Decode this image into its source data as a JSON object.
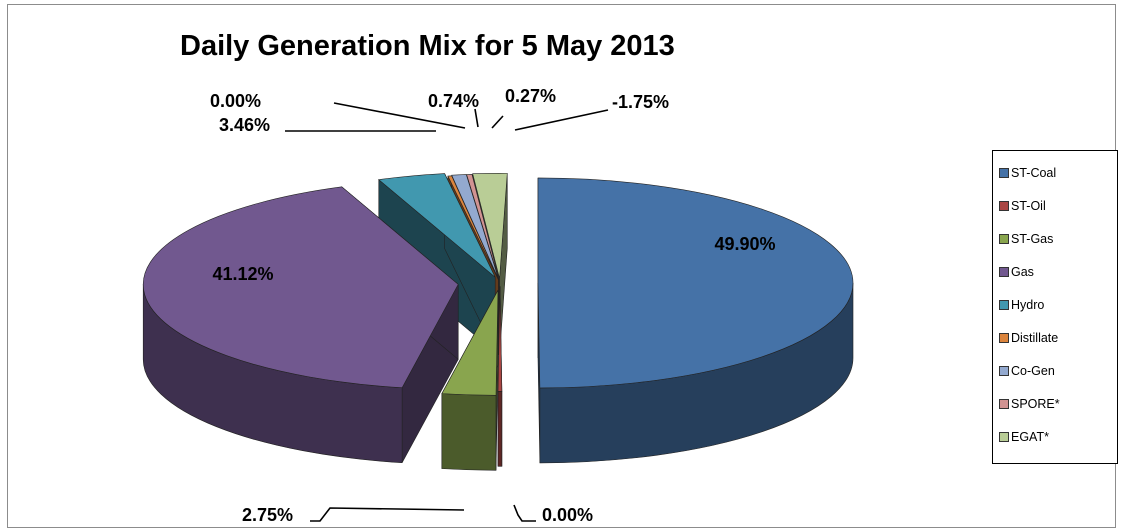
{
  "chart_data": {
    "type": "pie",
    "title": "Daily Generation Mix for 5 May 2013",
    "style": "3d-exploded",
    "legend_position": "right",
    "slices": [
      {
        "name": "ST-Coal",
        "value": 49.9,
        "label": "49.90%",
        "color": "#4572a7"
      },
      {
        "name": "ST-Oil",
        "value": 0.0,
        "label": "0.00%",
        "color": "#aa4643"
      },
      {
        "name": "ST-Gas",
        "value": 2.75,
        "label": "2.75%",
        "color": "#89a54e"
      },
      {
        "name": "Gas",
        "value": 41.12,
        "label": "41.12%",
        "color": "#71588f"
      },
      {
        "name": "Hydro",
        "value": 3.46,
        "label": "3.46%",
        "color": "#4198af"
      },
      {
        "name": "Distillate",
        "value": 0.0,
        "label": "0.00%",
        "color": "#db843d"
      },
      {
        "name": "Co-Gen",
        "value": 0.74,
        "label": "0.74%",
        "color": "#93a9cf"
      },
      {
        "name": "SPORE*",
        "value": 0.27,
        "label": "0.27%",
        "color": "#d19392"
      },
      {
        "name": "EGAT*",
        "value": -1.75,
        "label": "-1.75%",
        "color": "#b9cd96"
      }
    ]
  }
}
